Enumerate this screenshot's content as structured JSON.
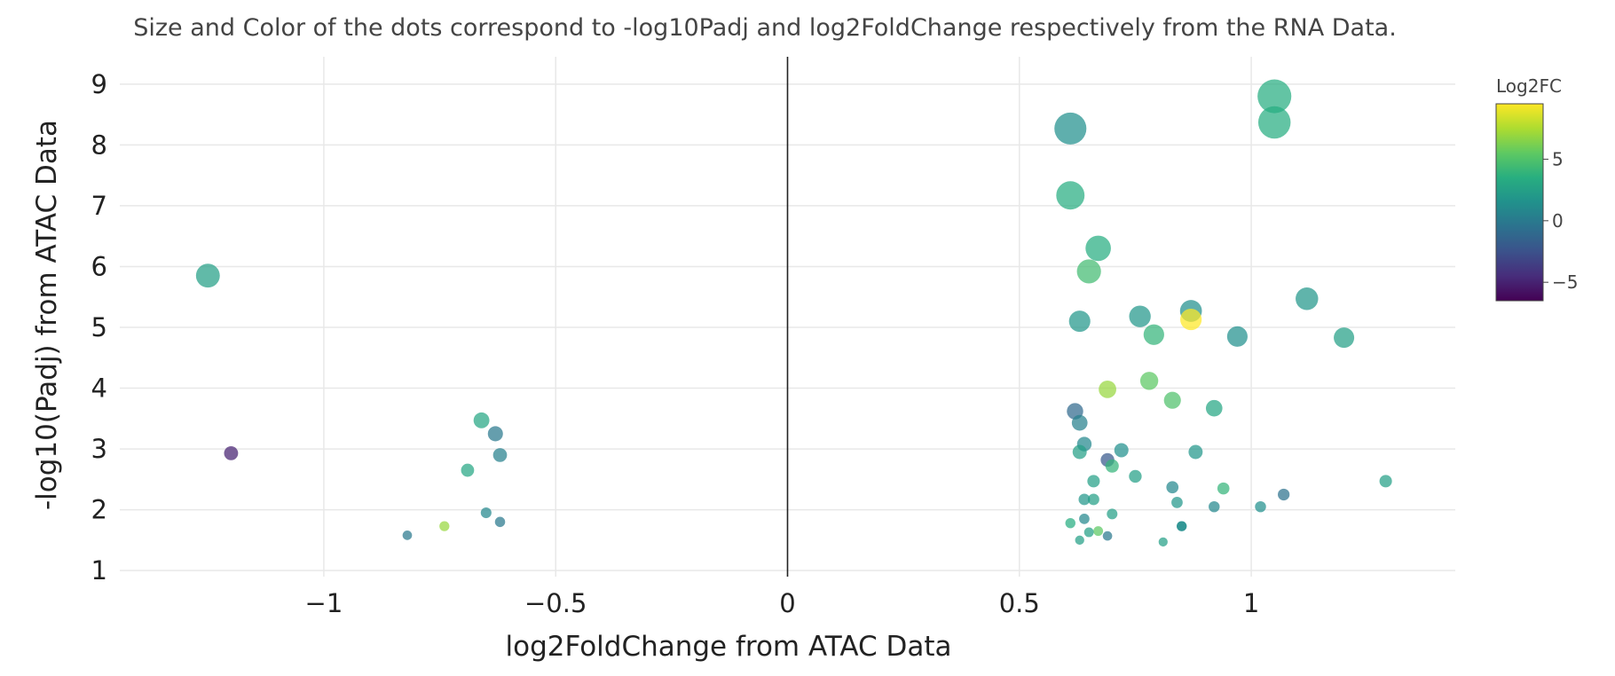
{
  "chart_data": {
    "type": "scatter",
    "title": "Size and Color of the dots correspond to -log10Padj and log2FoldChange respectively from the RNA Data.",
    "xlabel": "log2FoldChange from ATAC Data",
    "ylabel": "-log10(Padj) from ATAC Data",
    "xlim": [
      -1.44,
      1.44
    ],
    "ylim": [
      0.9,
      9.45
    ],
    "x_ticks": [
      -1,
      -0.5,
      0,
      0.5,
      1
    ],
    "x_tick_labels": [
      "−1",
      "−0.5",
      "0",
      "0.5",
      "1"
    ],
    "y_ticks": [
      1,
      2,
      3,
      4,
      5,
      6,
      7,
      8,
      9
    ],
    "y_tick_labels": [
      "1",
      "2",
      "3",
      "4",
      "5",
      "6",
      "7",
      "8",
      "9"
    ],
    "grid": true,
    "zero_line_x": 0,
    "colorscale": "viridis",
    "color_range": [
      -6.5,
      9.5
    ],
    "colorbar": {
      "title": "Log2FC",
      "ticks": [
        5,
        0,
        -5
      ],
      "tick_labels": [
        "5",
        "0",
        "−5"
      ]
    },
    "points": [
      {
        "x": -1.25,
        "y": 5.85,
        "size": 5.85,
        "color": 2.5
      },
      {
        "x": -1.2,
        "y": 2.93,
        "size": 2.93,
        "color": -5.0
      },
      {
        "x": -0.66,
        "y": 3.47,
        "size": 3.47,
        "color": 3.0
      },
      {
        "x": -0.63,
        "y": 3.25,
        "size": 3.25,
        "color": 0.0
      },
      {
        "x": -0.62,
        "y": 2.9,
        "size": 2.9,
        "color": 0.5
      },
      {
        "x": -0.69,
        "y": 2.65,
        "size": 2.65,
        "color": 3.0
      },
      {
        "x": -0.65,
        "y": 1.95,
        "size": 1.95,
        "color": 1.0
      },
      {
        "x": -0.62,
        "y": 1.8,
        "size": 1.8,
        "color": 0.0
      },
      {
        "x": -0.74,
        "y": 1.73,
        "size": 1.73,
        "color": 7.0
      },
      {
        "x": -0.82,
        "y": 1.58,
        "size": 1.58,
        "color": 0.0
      },
      {
        "x": 1.05,
        "y": 8.8,
        "size": 8.8,
        "color": 3.5
      },
      {
        "x": 1.05,
        "y": 8.37,
        "size": 8.37,
        "color": 3.5
      },
      {
        "x": 0.61,
        "y": 8.27,
        "size": 8.27,
        "color": 1.5
      },
      {
        "x": 0.61,
        "y": 7.17,
        "size": 7.17,
        "color": 3.5
      },
      {
        "x": 0.67,
        "y": 6.3,
        "size": 6.3,
        "color": 3.5
      },
      {
        "x": 0.65,
        "y": 5.92,
        "size": 5.92,
        "color": 4.5
      },
      {
        "x": 1.12,
        "y": 5.47,
        "size": 5.47,
        "color": 2.0
      },
      {
        "x": 0.87,
        "y": 5.27,
        "size": 5.27,
        "color": 1.5
      },
      {
        "x": 0.76,
        "y": 5.18,
        "size": 5.18,
        "color": 2.0
      },
      {
        "x": 0.87,
        "y": 5.13,
        "size": 5.13,
        "color": 9.5
      },
      {
        "x": 0.63,
        "y": 5.1,
        "size": 5.1,
        "color": 2.0
      },
      {
        "x": 0.79,
        "y": 4.88,
        "size": 4.88,
        "color": 4.0
      },
      {
        "x": 0.97,
        "y": 4.85,
        "size": 4.85,
        "color": 1.5
      },
      {
        "x": 1.2,
        "y": 4.83,
        "size": 4.83,
        "color": 2.5
      },
      {
        "x": 0.78,
        "y": 4.12,
        "size": 4.12,
        "color": 5.5
      },
      {
        "x": 0.69,
        "y": 3.98,
        "size": 3.98,
        "color": 7.0
      },
      {
        "x": 0.83,
        "y": 3.8,
        "size": 3.8,
        "color": 5.0
      },
      {
        "x": 0.92,
        "y": 3.67,
        "size": 3.67,
        "color": 3.0
      },
      {
        "x": 0.62,
        "y": 3.62,
        "size": 3.62,
        "color": -1.0
      },
      {
        "x": 0.63,
        "y": 3.43,
        "size": 3.43,
        "color": 0.5
      },
      {
        "x": 0.64,
        "y": 3.08,
        "size": 3.08,
        "color": 1.0
      },
      {
        "x": 0.72,
        "y": 2.98,
        "size": 2.98,
        "color": 1.5
      },
      {
        "x": 0.63,
        "y": 2.95,
        "size": 2.95,
        "color": 2.5
      },
      {
        "x": 0.88,
        "y": 2.95,
        "size": 2.95,
        "color": 2.0
      },
      {
        "x": 0.69,
        "y": 2.82,
        "size": 2.82,
        "color": -2.0
      },
      {
        "x": 0.7,
        "y": 2.72,
        "size": 2.72,
        "color": 4.0
      },
      {
        "x": 0.75,
        "y": 2.55,
        "size": 2.55,
        "color": 2.5
      },
      {
        "x": 0.66,
        "y": 2.47,
        "size": 2.47,
        "color": 2.5
      },
      {
        "x": 1.29,
        "y": 2.47,
        "size": 2.47,
        "color": 2.5
      },
      {
        "x": 0.83,
        "y": 2.37,
        "size": 2.37,
        "color": 1.0
      },
      {
        "x": 0.94,
        "y": 2.35,
        "size": 2.35,
        "color": 4.0
      },
      {
        "x": 1.07,
        "y": 2.25,
        "size": 2.25,
        "color": -0.5
      },
      {
        "x": 0.64,
        "y": 2.17,
        "size": 2.17,
        "color": 2.0
      },
      {
        "x": 0.66,
        "y": 2.17,
        "size": 2.17,
        "color": 2.5
      },
      {
        "x": 0.84,
        "y": 2.12,
        "size": 2.12,
        "color": 2.0
      },
      {
        "x": 0.92,
        "y": 2.05,
        "size": 2.05,
        "color": 1.0
      },
      {
        "x": 1.02,
        "y": 2.05,
        "size": 2.05,
        "color": 1.5
      },
      {
        "x": 0.7,
        "y": 1.93,
        "size": 1.93,
        "color": 2.5
      },
      {
        "x": 0.64,
        "y": 1.85,
        "size": 1.85,
        "color": 1.0
      },
      {
        "x": 0.61,
        "y": 1.78,
        "size": 1.78,
        "color": 3.5
      },
      {
        "x": 0.85,
        "y": 1.73,
        "size": 1.73,
        "color": 1.0
      },
      {
        "x": 0.85,
        "y": 1.73,
        "size": 1.73,
        "color": 1.5
      },
      {
        "x": 0.67,
        "y": 1.65,
        "size": 1.65,
        "color": 5.5
      },
      {
        "x": 0.65,
        "y": 1.63,
        "size": 1.63,
        "color": 2.5
      },
      {
        "x": 0.69,
        "y": 1.57,
        "size": 1.57,
        "color": 0.0
      },
      {
        "x": 0.63,
        "y": 1.5,
        "size": 1.5,
        "color": 2.5
      },
      {
        "x": 0.81,
        "y": 1.47,
        "size": 1.47,
        "color": 2.5
      }
    ]
  }
}
